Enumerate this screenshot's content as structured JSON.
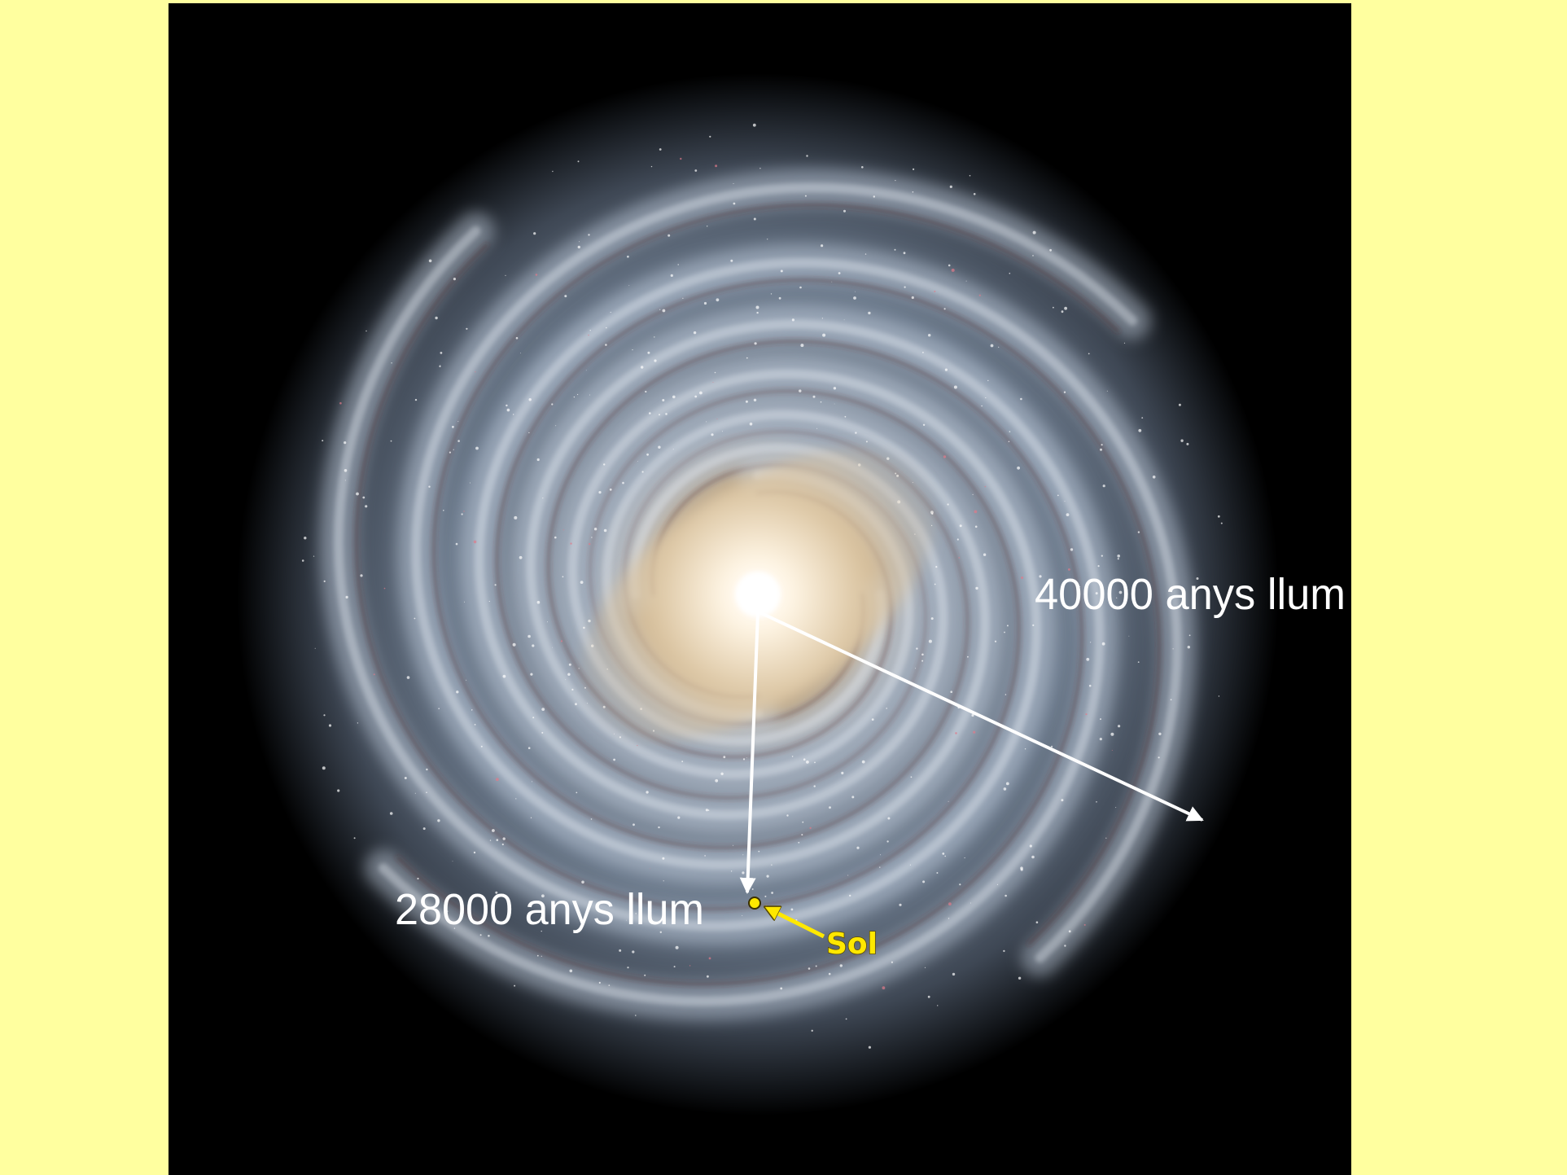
{
  "labels": {
    "outer_radius": "40000 anys llum",
    "sun_distance": "28000 anys llum",
    "sun": "Sol"
  }
}
